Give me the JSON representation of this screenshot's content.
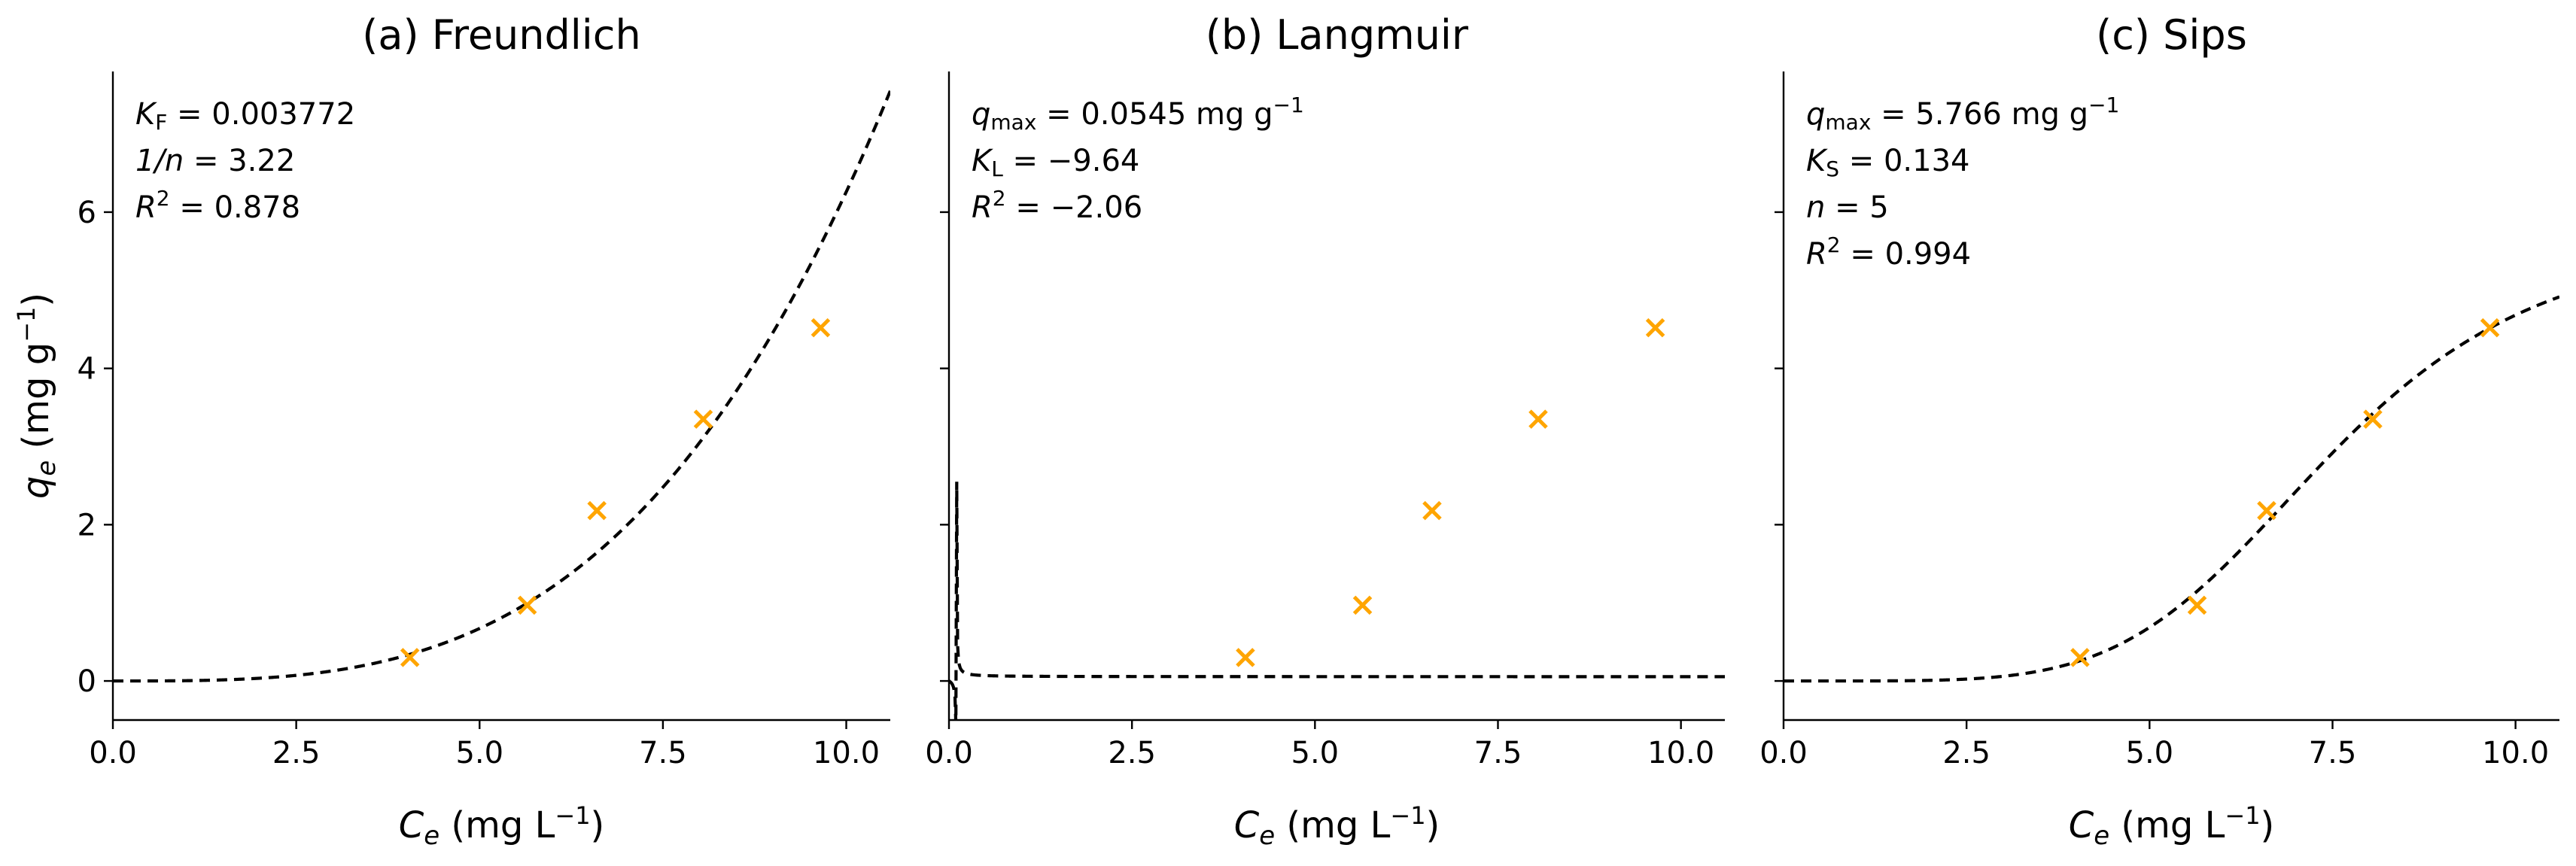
{
  "chart_data": [
    {
      "type": "scatter",
      "title": "(a) Freundlich",
      "xlabel": {
        "sym": "C",
        "sub": "e",
        "unit": " (mg L",
        "exp": "−1",
        "close": ")"
      },
      "ylabel": {
        "sym": "q",
        "sub": "e",
        "unit": " (mg g",
        "exp": "−1",
        "close": ")"
      },
      "xlim": [
        0,
        10.6
      ],
      "ylim": [
        -0.5,
        7.8
      ],
      "xticks": [
        0,
        2.5,
        5,
        7.5,
        10
      ],
      "xtick_labels": [
        "0.0",
        "2.5",
        "5.0",
        "7.5",
        "10.0"
      ],
      "yticks": [
        0,
        2,
        4,
        6
      ],
      "ytick_labels": [
        "0",
        "2",
        "4",
        "6"
      ],
      "show_ytick_labels": true,
      "observed": {
        "x": [
          4.05,
          5.65,
          6.6,
          8.05,
          9.65
        ],
        "y": [
          0.3,
          0.97,
          2.18,
          3.35,
          4.52
        ],
        "color": "#FFA500"
      },
      "fit": {
        "model": "freundlich",
        "params": {
          "KF": 0.003772,
          "n_inv": 3.22
        },
        "x_range": [
          0,
          10.6
        ]
      },
      "annotations": [
        {
          "sym": "K",
          "sub": "F",
          "text": " = 0.003772"
        },
        {
          "sym": "1/n",
          "text": " = 3.22"
        },
        {
          "sym": "R",
          "sup": "2",
          "text": " = 0.878"
        }
      ]
    },
    {
      "type": "scatter",
      "title": "(b) Langmuir",
      "xlabel": {
        "sym": "C",
        "sub": "e",
        "unit": " (mg L",
        "exp": "−1",
        "close": ")"
      },
      "xlim": [
        0,
        10.6
      ],
      "ylim": [
        -0.5,
        7.8
      ],
      "xticks": [
        0,
        2.5,
        5,
        7.5,
        10
      ],
      "xtick_labels": [
        "0.0",
        "2.5",
        "5.0",
        "7.5",
        "10.0"
      ],
      "yticks": [
        0,
        2,
        4,
        6
      ],
      "show_ytick_labels": false,
      "observed": {
        "x": [
          4.05,
          5.65,
          6.6,
          8.05,
          9.65
        ],
        "y": [
          0.3,
          0.97,
          2.18,
          3.35,
          4.52
        ],
        "color": "#FFA500"
      },
      "fit": {
        "model": "langmuir",
        "params": {
          "qmax": 0.0545,
          "KL": -9.64
        },
        "x_range": [
          0,
          10.6
        ]
      },
      "annotations": [
        {
          "sym": "q",
          "sub": "max",
          "text": " = 0.0545 mg g",
          "sup": "−1"
        },
        {
          "sym": "K",
          "sub": "L",
          "text": " = −9.64"
        },
        {
          "sym": "R",
          "sup": "2",
          "text": " = −2.06"
        }
      ]
    },
    {
      "type": "scatter",
      "title": "(c) Sips",
      "xlabel": {
        "sym": "C",
        "sub": "e",
        "unit": " (mg L",
        "exp": "−1",
        "close": ")"
      },
      "xlim": [
        0,
        10.6
      ],
      "ylim": [
        -0.5,
        7.8
      ],
      "xticks": [
        0,
        2.5,
        5,
        7.5,
        10
      ],
      "xtick_labels": [
        "0.0",
        "2.5",
        "5.0",
        "7.5",
        "10.0"
      ],
      "yticks": [
        0,
        2,
        4,
        6
      ],
      "show_ytick_labels": false,
      "observed": {
        "x": [
          4.05,
          5.65,
          6.6,
          8.05,
          9.65
        ],
        "y": [
          0.3,
          0.97,
          2.18,
          3.35,
          4.52
        ],
        "color": "#FFA500"
      },
      "fit": {
        "model": "sips",
        "params": {
          "qmax": 5.766,
          "KS": 0.134,
          "n": 5
        },
        "x_range": [
          0,
          10.6
        ]
      },
      "annotations": [
        {
          "sym": "q",
          "sub": "max",
          "text": " = 5.766 mg g",
          "sup": "−1"
        },
        {
          "sym": "K",
          "sub": "S",
          "text": " = 0.134"
        },
        {
          "sym": "n",
          "text": " = 5"
        },
        {
          "sym": "R",
          "sup": "2",
          "text": " = 0.994"
        }
      ]
    }
  ]
}
